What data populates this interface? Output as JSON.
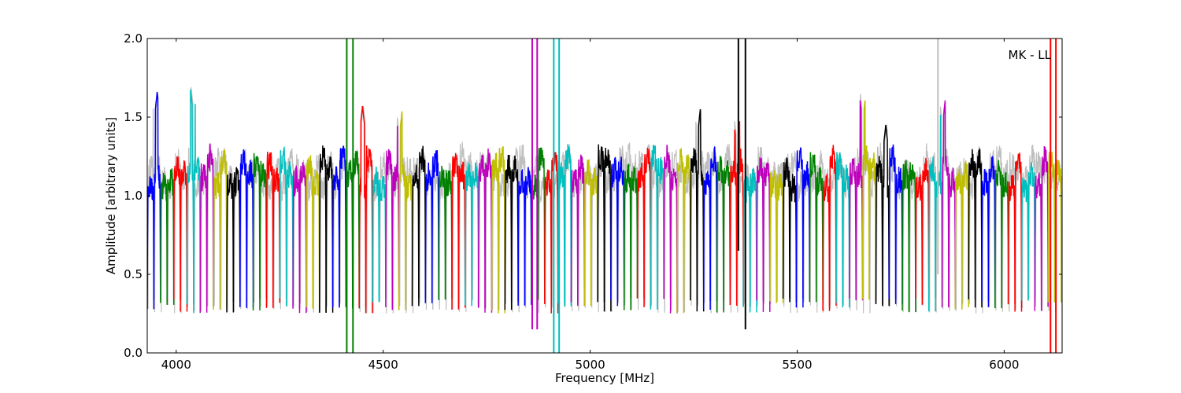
{
  "chart_data": {
    "type": "line",
    "title": "",
    "xlabel": "Frequency [MHz]",
    "ylabel": "Amplitude [arbitrary units]",
    "annotation": "MK - LL",
    "xlim": [
      3930,
      6140
    ],
    "ylim": [
      0.0,
      2.0
    ],
    "xticks": [
      4000,
      4500,
      5000,
      5500,
      6000
    ],
    "xtick_labels": [
      "4000",
      "4500",
      "5000",
      "5500",
      "6000"
    ],
    "yticks": [
      0.0,
      0.5,
      1.0,
      1.5,
      2.0
    ],
    "ytick_labels": [
      "0.0",
      "0.5",
      "1.0",
      "1.5",
      "2.0"
    ],
    "grid": false,
    "legend": "none",
    "background_series_color": "#bfbfbf",
    "color_cycle": [
      "#0000ff",
      "#008000",
      "#ff0000",
      "#00bfbf",
      "#bf00bf",
      "#bfbf00",
      "#000000"
    ],
    "channel_width_mhz": 16,
    "channel_spacing_mhz": 16,
    "channel_start_mhz": 3930,
    "channel_count": 138,
    "typical_passband_level": 1.15,
    "typical_edge_level": 0.3,
    "spikes": [
      {
        "x": 4412,
        "color": "#008000",
        "ymin": 0.0,
        "ymax": 2.0
      },
      {
        "x": 4427,
        "color": "#008000",
        "ymin": 0.0,
        "ymax": 2.0
      },
      {
        "x": 4860,
        "color": "#bf00bf",
        "ymin": 0.15,
        "ymax": 2.0
      },
      {
        "x": 4872,
        "color": "#bf00bf",
        "ymin": 0.15,
        "ymax": 2.0
      },
      {
        "x": 4912,
        "color": "#00bfbf",
        "ymin": 0.0,
        "ymax": 2.0
      },
      {
        "x": 4925,
        "color": "#00bfbf",
        "ymin": 0.0,
        "ymax": 2.0
      },
      {
        "x": 5358,
        "color": "#000000",
        "ymin": 0.65,
        "ymax": 2.0
      },
      {
        "x": 5375,
        "color": "#000000",
        "ymin": 0.15,
        "ymax": 2.0
      },
      {
        "x": 5840,
        "color": "#bfbfbf",
        "ymin": 0.5,
        "ymax": 2.0
      },
      {
        "x": 6112,
        "color": "#ff0000",
        "ymin": 0.0,
        "ymax": 2.0
      },
      {
        "x": 6125,
        "color": "#ff0000",
        "ymin": 0.0,
        "ymax": 2.0
      }
    ],
    "peaks": [
      {
        "x": 3950,
        "y": 1.66
      },
      {
        "x": 4040,
        "y": 1.69
      },
      {
        "x": 4452,
        "y": 1.57
      },
      {
        "x": 4540,
        "y": 1.55
      },
      {
        "x": 5261,
        "y": 1.55
      },
      {
        "x": 5355,
        "y": 1.5
      },
      {
        "x": 5658,
        "y": 1.66
      },
      {
        "x": 5712,
        "y": 1.45
      },
      {
        "x": 5852,
        "y": 1.62
      }
    ]
  }
}
